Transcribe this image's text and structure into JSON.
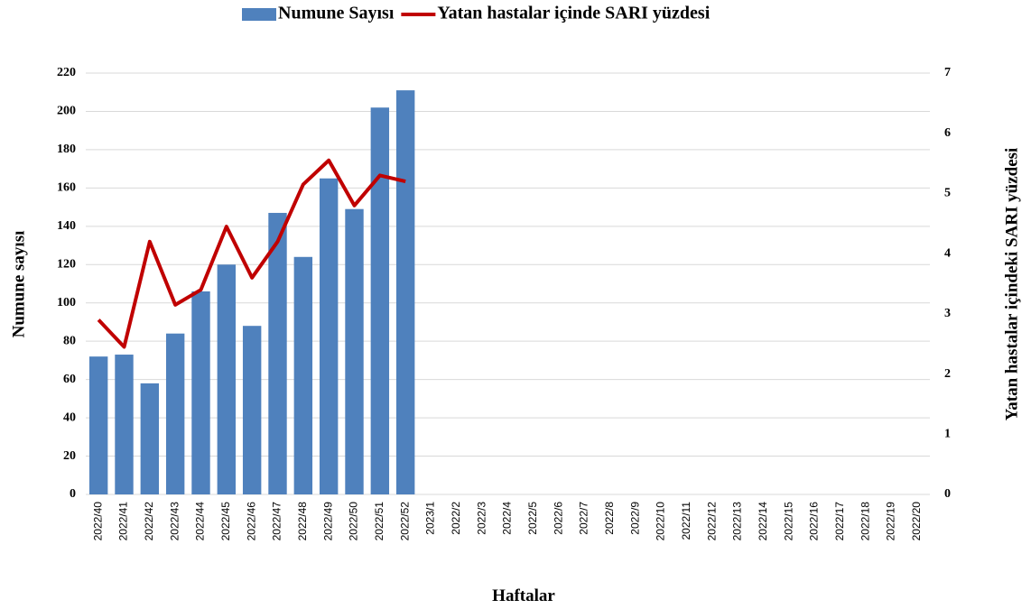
{
  "chart_data": {
    "type": "bar_line",
    "x_label": "Haftalar",
    "y_label": "Numune sayısı",
    "y2_label": "Yatan hastalar içindeki SARI yüzdesi",
    "categories": [
      "2022/40",
      "2022/41",
      "2022/42",
      "2022/43",
      "2022/44",
      "2022/45",
      "2022/46",
      "2022/47",
      "2022/48",
      "2022/49",
      "2022/50",
      "2022/51",
      "2022/52",
      "2023/1",
      "2022/2",
      "2022/3",
      "2022/4",
      "2022/5",
      "2022/6",
      "2022/7",
      "2022/8",
      "2022/9",
      "2022/10",
      "2022/11",
      "2022/12",
      "2022/13",
      "2022/14",
      "2022/15",
      "2022/16",
      "2022/17",
      "2022/18",
      "2022/19",
      "2022/20"
    ],
    "series": [
      {
        "name": "Numune Sayısı",
        "type": "bar",
        "color": "#4f81bd",
        "values": [
          72,
          73,
          58,
          84,
          106,
          120,
          88,
          147,
          124,
          165,
          149,
          202,
          211,
          null,
          null,
          null,
          null,
          null,
          null,
          null,
          null,
          null,
          null,
          null,
          null,
          null,
          null,
          null,
          null,
          null,
          null,
          null,
          null
        ]
      },
      {
        "name": "Yatan hastalar içinde SARI yüzdesi",
        "type": "line",
        "axis": "y2",
        "color": "#c00000",
        "values": [
          2.9,
          2.45,
          4.2,
          3.15,
          3.4,
          4.45,
          3.6,
          4.2,
          5.15,
          5.55,
          4.8,
          5.3,
          5.2,
          null,
          null,
          null,
          null,
          null,
          null,
          null,
          null,
          null,
          null,
          null,
          null,
          null,
          null,
          null,
          null,
          null,
          null,
          null,
          null
        ]
      }
    ],
    "ylim": [
      0,
      220
    ],
    "yticks": [
      0,
      20,
      40,
      60,
      80,
      100,
      120,
      140,
      160,
      180,
      200,
      220
    ],
    "y2lim": [
      0,
      7
    ],
    "y2ticks": [
      0,
      1,
      2,
      3,
      4,
      5,
      6,
      7
    ],
    "grid": true,
    "legend": "top"
  }
}
